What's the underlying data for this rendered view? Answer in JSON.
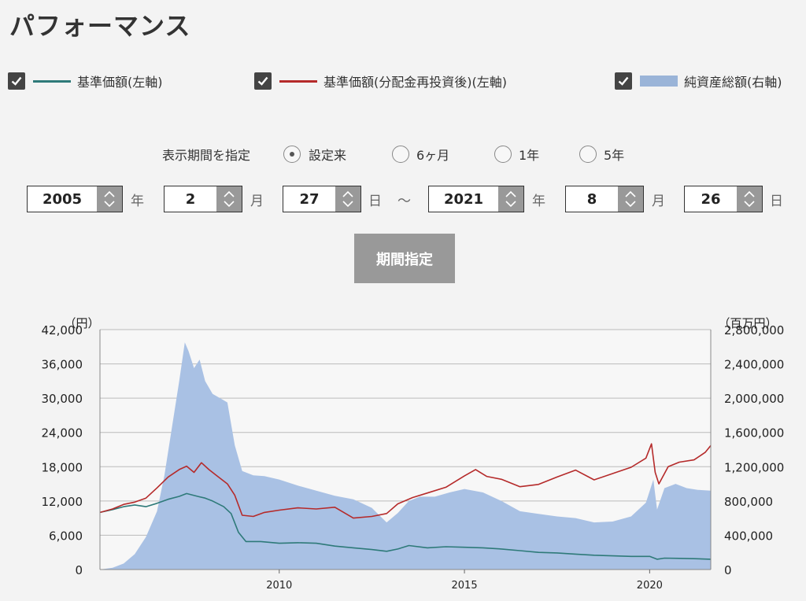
{
  "page": {
    "title": "パフォーマンス"
  },
  "legend": [
    {
      "label": "基準価額(左軸)",
      "color": "#2e7a79",
      "kind": "line",
      "checked": true
    },
    {
      "label": "基準価額(分配金再投資後)(左軸)",
      "color": "#b52a2a",
      "kind": "line",
      "checked": true
    },
    {
      "label": "純資産総額(右軸)",
      "color": "#9ab4d8",
      "kind": "area",
      "checked": true
    }
  ],
  "period": {
    "label": "表示期間を指定",
    "options": [
      {
        "label": "設定来",
        "selected": true
      },
      {
        "label": "6ヶ月",
        "selected": false
      },
      {
        "label": "1年",
        "selected": false
      },
      {
        "label": "5年",
        "selected": false
      }
    ]
  },
  "date_range": {
    "start": {
      "year": "2005",
      "month": "2",
      "day": "27"
    },
    "end": {
      "year": "2021",
      "month": "8",
      "day": "26"
    },
    "year_unit": "年",
    "month_unit": "月",
    "day_unit": "日",
    "separator": "～"
  },
  "apply_button": "期間指定",
  "chart_data": {
    "type": "line",
    "left_axis": {
      "unit_label": "（円）",
      "ticks": [
        "0",
        "6,000",
        "12,000",
        "18,000",
        "24,000",
        "30,000",
        "36,000",
        "42,000"
      ],
      "range": [
        0,
        42000
      ]
    },
    "right_axis": {
      "unit_label": "（百万円）",
      "ticks": [
        "0",
        "400,000",
        "800,000",
        "1,200,000",
        "1,600,000",
        "2,000,000",
        "2,400,000",
        "2,800,000"
      ],
      "range": [
        0,
        2800000
      ]
    },
    "x_axis": {
      "ticks": [
        "2010",
        "2015",
        "2020"
      ],
      "range": [
        2005.16,
        2021.65
      ]
    },
    "grid": true,
    "series": [
      {
        "name": "純資産総額(右軸)",
        "axis": "right",
        "kind": "area",
        "color": "#a9c1e4",
        "points": [
          [
            2005.16,
            0
          ],
          [
            2005.5,
            20000
          ],
          [
            2005.8,
            70000
          ],
          [
            2006.1,
            180000
          ],
          [
            2006.4,
            380000
          ],
          [
            2006.7,
            680000
          ],
          [
            2006.9,
            1100000
          ],
          [
            2007.1,
            1650000
          ],
          [
            2007.3,
            2200000
          ],
          [
            2007.45,
            2650000
          ],
          [
            2007.55,
            2550000
          ],
          [
            2007.7,
            2350000
          ],
          [
            2007.85,
            2450000
          ],
          [
            2008.0,
            2200000
          ],
          [
            2008.2,
            2050000
          ],
          [
            2008.4,
            2000000
          ],
          [
            2008.6,
            1950000
          ],
          [
            2008.8,
            1450000
          ],
          [
            2009.0,
            1150000
          ],
          [
            2009.3,
            1100000
          ],
          [
            2009.6,
            1090000
          ],
          [
            2010.0,
            1050000
          ],
          [
            2010.5,
            980000
          ],
          [
            2011.0,
            920000
          ],
          [
            2011.5,
            860000
          ],
          [
            2012.0,
            820000
          ],
          [
            2012.5,
            720000
          ],
          [
            2012.9,
            550000
          ],
          [
            2013.2,
            660000
          ],
          [
            2013.5,
            800000
          ],
          [
            2013.8,
            850000
          ],
          [
            2014.2,
            850000
          ],
          [
            2014.6,
            900000
          ],
          [
            2015.0,
            940000
          ],
          [
            2015.5,
            900000
          ],
          [
            2016.0,
            800000
          ],
          [
            2016.5,
            680000
          ],
          [
            2017.0,
            650000
          ],
          [
            2017.5,
            620000
          ],
          [
            2018.0,
            600000
          ],
          [
            2018.5,
            550000
          ],
          [
            2019.0,
            560000
          ],
          [
            2019.5,
            620000
          ],
          [
            2019.9,
            780000
          ],
          [
            2020.1,
            1050000
          ],
          [
            2020.2,
            700000
          ],
          [
            2020.4,
            950000
          ],
          [
            2020.7,
            1000000
          ],
          [
            2021.0,
            950000
          ],
          [
            2021.3,
            930000
          ],
          [
            2021.65,
            920000
          ]
        ]
      },
      {
        "name": "基準価額(左軸)",
        "axis": "left",
        "kind": "line",
        "color": "#2e7a79",
        "points": [
          [
            2005.16,
            10000
          ],
          [
            2005.5,
            10500
          ],
          [
            2005.8,
            11000
          ],
          [
            2006.1,
            11300
          ],
          [
            2006.4,
            11000
          ],
          [
            2006.7,
            11600
          ],
          [
            2007.0,
            12300
          ],
          [
            2007.3,
            12800
          ],
          [
            2007.5,
            13300
          ],
          [
            2007.8,
            12800
          ],
          [
            2008.0,
            12500
          ],
          [
            2008.2,
            12000
          ],
          [
            2008.5,
            11000
          ],
          [
            2008.7,
            9800
          ],
          [
            2008.9,
            6500
          ],
          [
            2009.1,
            4900
          ],
          [
            2009.5,
            4900
          ],
          [
            2010.0,
            4600
          ],
          [
            2010.5,
            4700
          ],
          [
            2011.0,
            4600
          ],
          [
            2011.5,
            4100
          ],
          [
            2012.0,
            3800
          ],
          [
            2012.5,
            3500
          ],
          [
            2012.9,
            3200
          ],
          [
            2013.2,
            3600
          ],
          [
            2013.5,
            4200
          ],
          [
            2014.0,
            3800
          ],
          [
            2014.5,
            4000
          ],
          [
            2015.0,
            3900
          ],
          [
            2015.5,
            3800
          ],
          [
            2016.0,
            3600
          ],
          [
            2016.5,
            3300
          ],
          [
            2017.0,
            3000
          ],
          [
            2017.5,
            2900
          ],
          [
            2018.0,
            2700
          ],
          [
            2018.5,
            2500
          ],
          [
            2019.0,
            2400
          ],
          [
            2019.5,
            2300
          ],
          [
            2020.0,
            2300
          ],
          [
            2020.2,
            1800
          ],
          [
            2020.4,
            2000
          ],
          [
            2020.8,
            1950
          ],
          [
            2021.2,
            1900
          ],
          [
            2021.65,
            1800
          ]
        ]
      },
      {
        "name": "基準価額(分配金再投資後)(左軸)",
        "axis": "left",
        "kind": "line",
        "color": "#b52a2a",
        "points": [
          [
            2005.16,
            10000
          ],
          [
            2005.5,
            10600
          ],
          [
            2005.8,
            11400
          ],
          [
            2006.1,
            11800
          ],
          [
            2006.4,
            12500
          ],
          [
            2006.7,
            14300
          ],
          [
            2007.0,
            16200
          ],
          [
            2007.3,
            17500
          ],
          [
            2007.5,
            18100
          ],
          [
            2007.7,
            17000
          ],
          [
            2007.9,
            18700
          ],
          [
            2008.1,
            17500
          ],
          [
            2008.3,
            16500
          ],
          [
            2008.6,
            15000
          ],
          [
            2008.8,
            13000
          ],
          [
            2009.0,
            9500
          ],
          [
            2009.3,
            9300
          ],
          [
            2009.6,
            10000
          ],
          [
            2010.0,
            10400
          ],
          [
            2010.5,
            10800
          ],
          [
            2011.0,
            10600
          ],
          [
            2011.5,
            10900
          ],
          [
            2012.0,
            9000
          ],
          [
            2012.5,
            9300
          ],
          [
            2012.9,
            9800
          ],
          [
            2013.2,
            11500
          ],
          [
            2013.6,
            12600
          ],
          [
            2014.0,
            13400
          ],
          [
            2014.5,
            14400
          ],
          [
            2015.0,
            16400
          ],
          [
            2015.3,
            17500
          ],
          [
            2015.6,
            16300
          ],
          [
            2016.0,
            15800
          ],
          [
            2016.5,
            14500
          ],
          [
            2017.0,
            14900
          ],
          [
            2017.5,
            16200
          ],
          [
            2018.0,
            17400
          ],
          [
            2018.5,
            15700
          ],
          [
            2019.0,
            16800
          ],
          [
            2019.5,
            17900
          ],
          [
            2019.9,
            19500
          ],
          [
            2020.05,
            22000
          ],
          [
            2020.15,
            17000
          ],
          [
            2020.25,
            15000
          ],
          [
            2020.5,
            18000
          ],
          [
            2020.8,
            18800
          ],
          [
            2021.2,
            19200
          ],
          [
            2021.5,
            20500
          ],
          [
            2021.65,
            21700
          ]
        ]
      }
    ]
  }
}
